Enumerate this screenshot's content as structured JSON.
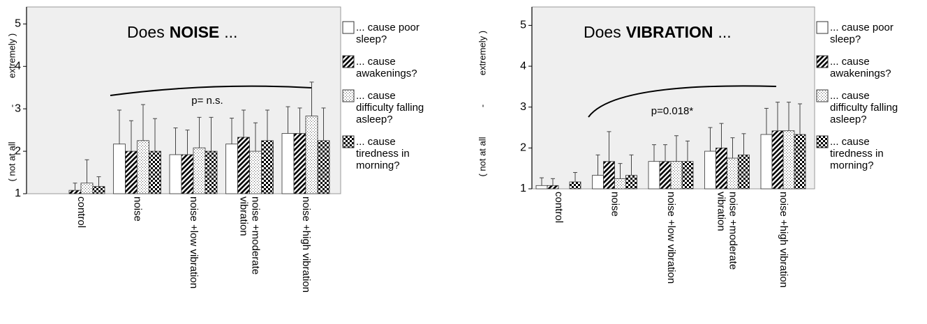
{
  "chart_data": [
    {
      "type": "bar",
      "title": [
        "Does",
        "NOISE",
        "..."
      ],
      "ylabel": [
        "( not at all",
        "-",
        "extremely )"
      ],
      "annotation": "p= n.s.",
      "categories": [
        [
          "control"
        ],
        [
          "noise"
        ],
        [
          "noise +low vibration"
        ],
        [
          "noise +moderate",
          "vibration"
        ],
        [
          "noise +high vibration"
        ]
      ],
      "ylim": [
        1,
        5.4
      ],
      "yticks": [
        1,
        2,
        3,
        4,
        5
      ],
      "series": [
        {
          "name": "... cause poor sleep?",
          "color": "#ffffff",
          "pattern": "solid",
          "values": [
            1.0,
            2.17,
            1.92,
            2.17,
            2.42
          ],
          "errors": [
            0,
            0.8,
            0.63,
            0.61,
            0.63
          ]
        },
        {
          "name": "... cause awakenings?",
          "color": "#ffffff",
          "pattern": "diagonal",
          "values": [
            1.08,
            2.0,
            1.92,
            2.33,
            2.42
          ],
          "errors": [
            0.17,
            0.72,
            0.58,
            0.64,
            0.6
          ]
        },
        {
          "name": "... cause difficulty falling asleep?",
          "color": "#ffffff",
          "pattern": "dots",
          "values": [
            1.25,
            2.25,
            2.08,
            2.0,
            2.83
          ],
          "errors": [
            0.55,
            0.85,
            0.72,
            0.67,
            0.8
          ]
        },
        {
          "name": "... cause tiredness in morning?",
          "color": "#ffffff",
          "pattern": "checker",
          "values": [
            1.17,
            2.0,
            2.0,
            2.25,
            2.25
          ],
          "errors": [
            0.23,
            0.77,
            0.8,
            0.72,
            0.77
          ]
        }
      ]
    },
    {
      "type": "bar",
      "title": [
        "Does",
        "VIBRATION",
        "..."
      ],
      "ylabel": [
        "( not at all",
        "-",
        "extremely )"
      ],
      "annotation": "p=0.018*",
      "categories": [
        [
          "control"
        ],
        [
          "noise"
        ],
        [
          "noise +low vibration"
        ],
        [
          "noise +moderate",
          "vibration"
        ],
        [
          "noise +high vibration"
        ]
      ],
      "ylim": [
        1,
        5.45
      ],
      "yticks": [
        1,
        2,
        3,
        4,
        5
      ],
      "series": [
        {
          "name": "... cause poor sleep?",
          "color": "#ffffff",
          "pattern": "solid",
          "values": [
            1.08,
            1.33,
            1.67,
            1.92,
            2.33
          ],
          "errors": [
            0.19,
            0.5,
            0.41,
            0.58,
            0.64
          ]
        },
        {
          "name": "... cause awakenings?",
          "color": "#ffffff",
          "pattern": "diagonal",
          "values": [
            1.08,
            1.67,
            1.67,
            2.0,
            2.42
          ],
          "errors": [
            0.17,
            0.73,
            0.41,
            0.6,
            0.7
          ]
        },
        {
          "name": "... cause difficulty falling asleep?",
          "color": "#ffffff",
          "pattern": "dots",
          "values": [
            1.0,
            1.25,
            1.67,
            1.75,
            2.42
          ],
          "errors": [
            0,
            0.37,
            0.63,
            0.5,
            0.7
          ]
        },
        {
          "name": "... cause tiredness in morning?",
          "color": "#ffffff",
          "pattern": "checker",
          "values": [
            1.17,
            1.33,
            1.67,
            1.83,
            2.33
          ],
          "errors": [
            0.23,
            0.5,
            0.5,
            0.52,
            0.75
          ]
        }
      ]
    }
  ]
}
